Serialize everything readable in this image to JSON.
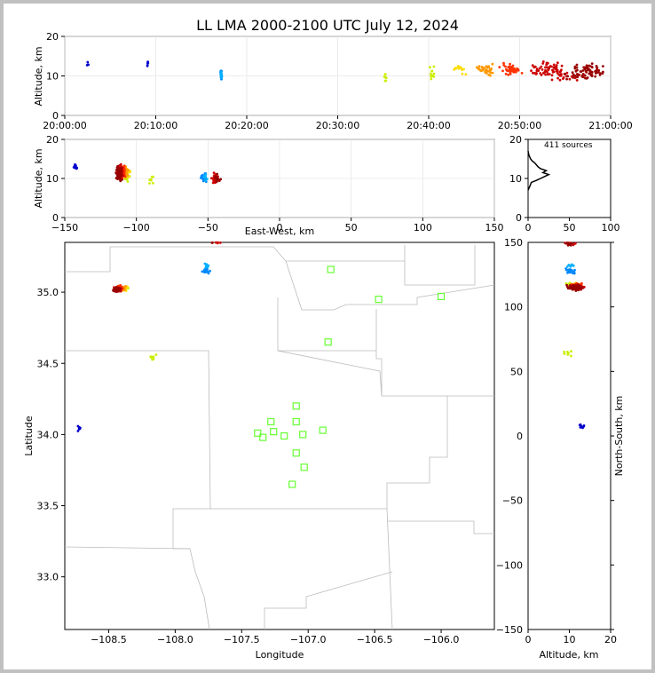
{
  "chart_data": {
    "type": "scatter",
    "title": "LL LMA 2000-2100 UTC July 12, 2024",
    "colormap": [
      "#0000cc",
      "#0088ff",
      "#00b0ff",
      "#ccee00",
      "#ffdd00",
      "#ff9900",
      "#ff3300",
      "#cc0000",
      "#990000"
    ],
    "panels": {
      "time_height": {
        "ylabel": "Altitude, km",
        "xlim_minutes": [
          0,
          60
        ],
        "ylim": [
          0,
          20
        ],
        "xticks": [
          "20:00:00",
          "20:10:00",
          "20:20:00",
          "20:30:00",
          "20:40:00",
          "20:50:00",
          "21:00:00"
        ],
        "yticks": [
          "0",
          "10",
          "20"
        ]
      },
      "ew_height": {
        "xlabel": "East-West, km",
        "ylabel": "Altitude, km",
        "xlim": [
          -150,
          150
        ],
        "ylim": [
          0,
          20
        ],
        "xticks": [
          "−150",
          "−100",
          "−50",
          "0",
          "50",
          "100",
          "150"
        ],
        "yticks": [
          "0",
          "10",
          "20"
        ]
      },
      "histogram": {
        "annotation": "411 sources",
        "xlim": [
          0,
          100
        ],
        "ylim": [
          0,
          20
        ],
        "xticks": [
          "0",
          "50",
          "100"
        ],
        "yticks": [
          "0",
          "10",
          "20"
        ],
        "profile": [
          [
            0,
            7
          ],
          [
            2,
            8
          ],
          [
            4,
            9
          ],
          [
            10,
            9.5
          ],
          [
            15,
            10
          ],
          [
            20,
            10.5
          ],
          [
            25,
            11
          ],
          [
            18,
            11.5
          ],
          [
            22,
            12
          ],
          [
            15,
            12.5
          ],
          [
            12,
            13
          ],
          [
            8,
            14
          ],
          [
            5,
            14.5
          ],
          [
            3,
            15
          ],
          [
            1,
            16
          ],
          [
            0,
            17
          ]
        ]
      },
      "plan": {
        "xlabel": "Longitude",
        "ylabel": "Latitude",
        "xlim": [
          -108.83,
          -105.6
        ],
        "ylim": [
          32.63,
          35.35
        ],
        "xticks": [
          "−108.5",
          "−108.0",
          "−107.5",
          "−107.0",
          "−106.5",
          "−106.0"
        ],
        "yticks": [
          "33.0",
          "33.5",
          "34.0",
          "34.5",
          "35.0"
        ],
        "stations": [
          [
            -107.38,
            34.01
          ],
          [
            -107.34,
            33.98
          ],
          [
            -107.28,
            34.09
          ],
          [
            -107.26,
            34.02
          ],
          [
            -107.18,
            33.99
          ],
          [
            -107.09,
            34.2
          ],
          [
            -107.09,
            34.09
          ],
          [
            -107.09,
            33.87
          ],
          [
            -107.04,
            34.0
          ],
          [
            -107.03,
            33.77
          ],
          [
            -107.12,
            33.65
          ],
          [
            -106.89,
            34.03
          ],
          [
            -106.83,
            35.16
          ],
          [
            -106.85,
            34.65
          ],
          [
            -106.47,
            34.95
          ],
          [
            -106.0,
            34.97
          ]
        ]
      },
      "ns_height": {
        "xlabel": "Altitude, km",
        "ylabel": "North-South, km",
        "xlim": [
          0,
          20
        ],
        "ylim": [
          -150,
          150
        ],
        "xticks": [
          "0",
          "10",
          "20"
        ],
        "yticks": [
          "−150",
          "−100",
          "−50",
          "0",
          "50",
          "100",
          "150"
        ]
      }
    },
    "clusters": [
      {
        "t": 2.5,
        "tspread": 0.2,
        "alt": 12.8,
        "altspread": 1.2,
        "lon": -108.72,
        "lat": 34.04,
        "ew": -143,
        "ns": 8,
        "n": 4,
        "c": 0
      },
      {
        "t": 9.1,
        "tspread": 0.15,
        "alt": 12.5,
        "altspread": 2,
        "lon": -108.72,
        "lat": 34.04,
        "ew": -142,
        "ns": 8,
        "n": 5,
        "c": 0
      },
      {
        "t": 17.2,
        "tspread": 0.1,
        "alt": 10.2,
        "altspread": 1.5,
        "lon": -107.77,
        "lat": 35.15,
        "ew": -53,
        "ns": 128,
        "n": 20,
        "c": 1
      },
      {
        "t": 17.2,
        "tspread": 0.1,
        "alt": 10.2,
        "altspread": 1.2,
        "lon": -107.76,
        "lat": 35.18,
        "ew": -52,
        "ns": 131,
        "n": 8,
        "c": 2
      },
      {
        "t": 35.3,
        "tspread": 0.3,
        "alt": 10,
        "altspread": 1.5,
        "lon": -108.17,
        "lat": 34.55,
        "ew": -90,
        "ns": 64,
        "n": 8,
        "c": 3
      },
      {
        "t": 40.3,
        "tspread": 0.4,
        "alt": 10.5,
        "altspread": 3,
        "lon": -108.37,
        "lat": 35.03,
        "ew": -107,
        "ns": 117,
        "n": 12,
        "c": 3
      },
      {
        "t": 43.5,
        "tspread": 1.2,
        "alt": 11.5,
        "altspread": 2,
        "lon": -108.38,
        "lat": 35.03,
        "ew": -106,
        "ns": 117,
        "n": 14,
        "c": 4
      },
      {
        "t": 46.5,
        "tspread": 1.5,
        "alt": 11.5,
        "altspread": 2,
        "lon": -108.4,
        "lat": 35.03,
        "ew": -108,
        "ns": 116,
        "n": 40,
        "c": 5
      },
      {
        "t": 49,
        "tspread": 1.5,
        "alt": 11.5,
        "altspread": 2,
        "lon": -108.42,
        "lat": 35.03,
        "ew": -110,
        "ns": 116,
        "n": 40,
        "c": 6
      },
      {
        "t": 53,
        "tspread": 2.5,
        "alt": 11.5,
        "altspread": 2.5,
        "lon": -108.43,
        "lat": 35.02,
        "ew": -111,
        "ns": 115,
        "n": 55,
        "c": 7
      },
      {
        "t": 57.5,
        "tspread": 2,
        "alt": 11.5,
        "altspread": 2.5,
        "lon": -108.44,
        "lat": 35.02,
        "ew": -112,
        "ns": 115,
        "n": 60,
        "c": 8
      },
      {
        "t": 55,
        "tspread": 3,
        "alt": 10,
        "altspread": 2,
        "lon": -107.68,
        "lat": 35.36,
        "ew": -45,
        "ns": 150,
        "n": 25,
        "c": 7
      },
      {
        "t": 56,
        "tspread": 2,
        "alt": 10,
        "altspread": 1.5,
        "lon": -107.7,
        "lat": 35.36,
        "ew": -43,
        "ns": 149,
        "n": 15,
        "c": 8
      }
    ]
  }
}
